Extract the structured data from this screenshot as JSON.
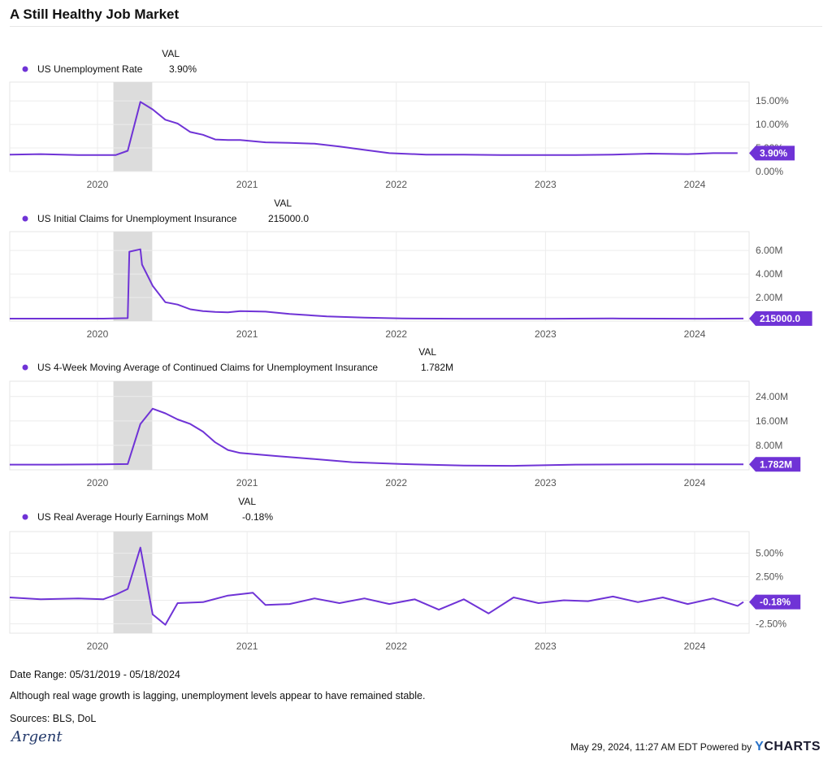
{
  "title": "A Still Healthy Job Market",
  "colors": {
    "line": "#6f33d6",
    "recession": "#dcdcdc",
    "grid": "#ececec"
  },
  "x_ticks": [
    "2020",
    "2021",
    "2022",
    "2023",
    "2024"
  ],
  "chart_data": [
    {
      "type": "line",
      "legend_header": "VAL",
      "series": [
        {
          "name": "US Unemployment Rate",
          "display_value": "3.90%"
        }
      ],
      "y_ticks": [
        "15.00%",
        "10.00%",
        "5.00%",
        "0.00%"
      ],
      "ylim": [
        0,
        19
      ],
      "recession": [
        "2020-02",
        "2020-04"
      ],
      "x": [
        "2019-05",
        "2019-08",
        "2019-11",
        "2020-01",
        "2020-02",
        "2020-03",
        "2020-04",
        "2020-05",
        "2020-06",
        "2020-07",
        "2020-08",
        "2020-09",
        "2020-10",
        "2020-11",
        "2020-12",
        "2021-02",
        "2021-04",
        "2021-06",
        "2021-08",
        "2021-10",
        "2021-12",
        "2022-03",
        "2022-06",
        "2022-09",
        "2022-12",
        "2023-03",
        "2023-06",
        "2023-09",
        "2023-12",
        "2024-02",
        "2024-04"
      ],
      "values": [
        3.6,
        3.7,
        3.5,
        3.5,
        3.5,
        4.4,
        14.8,
        13.2,
        11.0,
        10.2,
        8.4,
        7.8,
        6.8,
        6.7,
        6.7,
        6.2,
        6.1,
        5.9,
        5.3,
        4.6,
        3.9,
        3.6,
        3.6,
        3.5,
        3.5,
        3.5,
        3.6,
        3.8,
        3.7,
        3.9,
        3.9
      ]
    },
    {
      "type": "line",
      "legend_header": "VAL",
      "series": [
        {
          "name": "US Initial Claims for Unemployment Insurance",
          "display_value": "215000.0"
        }
      ],
      "y_ticks": [
        "6.00M",
        "4.00M",
        "2.00M"
      ],
      "ylim": [
        0,
        7.6
      ],
      "recession": [
        "2020-02",
        "2020-04"
      ],
      "x": [
        "2019-05",
        "2019-09",
        "2020-01",
        "2020-03",
        "2020-03",
        "2020-04",
        "2020-04",
        "2020-05",
        "2020-06",
        "2020-07",
        "2020-08",
        "2020-09",
        "2020-10",
        "2020-11",
        "2020-12",
        "2021-02",
        "2021-04",
        "2021-07",
        "2021-10",
        "2022-01",
        "2022-06",
        "2023-01",
        "2023-06",
        "2024-01",
        "2024-05"
      ],
      "values": [
        0.21,
        0.21,
        0.21,
        0.25,
        5.9,
        6.1,
        4.8,
        3.0,
        1.6,
        1.4,
        1.0,
        0.85,
        0.78,
        0.74,
        0.85,
        0.8,
        0.6,
        0.4,
        0.3,
        0.22,
        0.2,
        0.2,
        0.22,
        0.2,
        0.215
      ]
    },
    {
      "type": "line",
      "legend_header": "VAL",
      "series": [
        {
          "name": "US 4-Week Moving Average of Continued Claims for Unemployment Insurance",
          "display_value": "1.782M"
        }
      ],
      "y_ticks": [
        "24.00M",
        "16.00M",
        "8.00M"
      ],
      "ylim": [
        0,
        29
      ],
      "recession": [
        "2020-02",
        "2020-04"
      ],
      "x": [
        "2019-05",
        "2019-09",
        "2020-01",
        "2020-03",
        "2020-04",
        "2020-05",
        "2020-06",
        "2020-07",
        "2020-08",
        "2020-09",
        "2020-10",
        "2020-11",
        "2020-12",
        "2021-03",
        "2021-06",
        "2021-09",
        "2022-01",
        "2022-06",
        "2022-10",
        "2023-03",
        "2023-09",
        "2024-01",
        "2024-05"
      ],
      "values": [
        1.7,
        1.7,
        1.8,
        1.9,
        15.0,
        20.0,
        18.5,
        16.5,
        15.0,
        12.5,
        9.0,
        6.5,
        5.5,
        4.5,
        3.5,
        2.5,
        1.9,
        1.4,
        1.3,
        1.7,
        1.8,
        1.8,
        1.78
      ]
    },
    {
      "type": "line",
      "legend_header": "VAL",
      "series": [
        {
          "name": "US Real Average Hourly Earnings MoM",
          "display_value": "-0.18%"
        }
      ],
      "y_ticks": [
        "5.00%",
        "2.50%",
        "0.00%",
        "-2.50%"
      ],
      "ylim": [
        -3.5,
        7.3
      ],
      "recession": [
        "2020-02",
        "2020-04"
      ],
      "x": [
        "2019-05",
        "2019-08",
        "2019-11",
        "2020-01",
        "2020-02",
        "2020-03",
        "2020-04",
        "2020-05",
        "2020-06",
        "2020-07",
        "2020-09",
        "2020-11",
        "2021-01",
        "2021-02",
        "2021-04",
        "2021-06",
        "2021-08",
        "2021-10",
        "2021-12",
        "2022-02",
        "2022-04",
        "2022-06",
        "2022-08",
        "2022-10",
        "2022-12",
        "2023-02",
        "2023-04",
        "2023-06",
        "2023-08",
        "2023-10",
        "2023-12",
        "2024-02",
        "2024-04",
        "2024-05"
      ],
      "values": [
        0.3,
        0.1,
        0.2,
        0.1,
        0.6,
        1.2,
        5.6,
        -1.5,
        -2.6,
        -0.3,
        -0.2,
        0.5,
        0.8,
        -0.5,
        -0.4,
        0.2,
        -0.3,
        0.2,
        -0.4,
        0.1,
        -1.0,
        0.1,
        -1.4,
        0.3,
        -0.3,
        0.0,
        -0.1,
        0.4,
        -0.2,
        0.3,
        -0.4,
        0.2,
        -0.6,
        -0.18
      ]
    }
  ],
  "footer": {
    "date_range": "Date Range: 05/31/2019 - 05/18/2024",
    "note": "Although real wage growth is lagging, unemployment levels appear to have remained stable.",
    "sources": "Sources: BLS, DoL",
    "timestamp": "May 29, 2024, 11:27 AM EDT Powered by",
    "brand": "CHARTS",
    "brand_prefix": "Y",
    "logo_text": "Argent"
  }
}
